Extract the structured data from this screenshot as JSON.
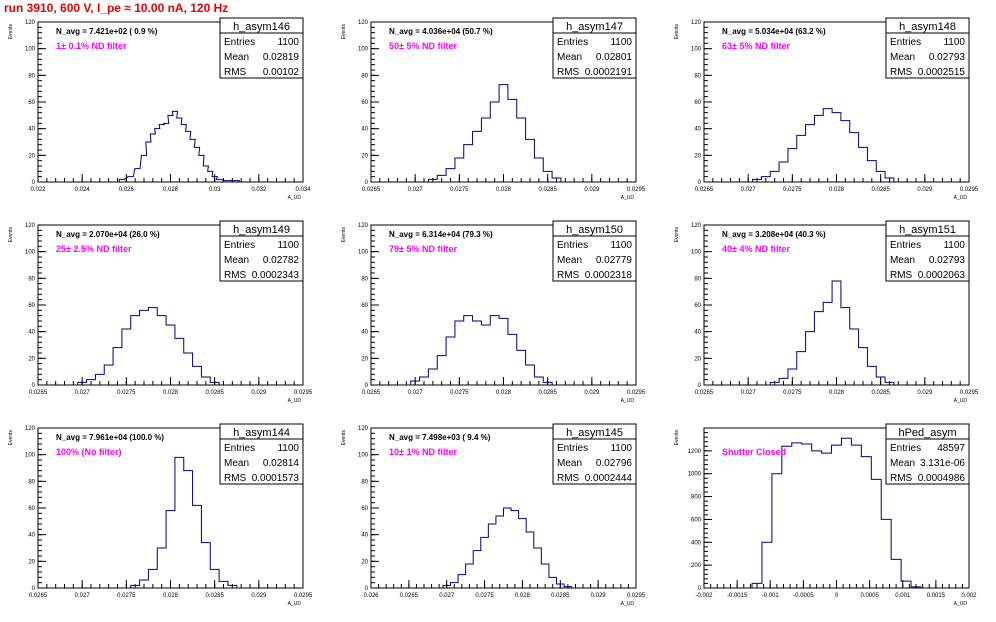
{
  "header": {
    "title": "run 3910,   600 V, I_pe ≈ 10.00 nA, 120 Hz"
  },
  "stat_labels": {
    "entries": "Entries",
    "mean": "Mean",
    "rms": "RMS"
  },
  "colors": {
    "histogram": "#000080",
    "filter_text": "#ff00ff",
    "title_text": "#e60000"
  },
  "chart_data": [
    {
      "type": "histogram",
      "name": "h_asym146",
      "navg": "N_avg = 7.421e+02 ( 0.9 %)",
      "filter": "1± 0.1% ND filter",
      "entries": "1100",
      "mean": "0.02819",
      "rms": "0.00102",
      "xlabel": "A_UD",
      "ylabel": "Events",
      "xlim": [
        0.022,
        0.034
      ],
      "ylim": [
        0,
        120
      ],
      "xticks": [
        "0.022",
        "0.024",
        "0.026",
        "0.028",
        "0.03",
        "0.032",
        "0.034"
      ],
      "yticks": [
        "0",
        "20",
        "40",
        "60",
        "80",
        "100",
        "120"
      ],
      "bin_centers": [
        0.0258,
        0.0262,
        0.0265,
        0.0268,
        0.027,
        0.0272,
        0.0274,
        0.0276,
        0.0278,
        0.028,
        0.0282,
        0.0284,
        0.0286,
        0.0288,
        0.029,
        0.0292,
        0.0294,
        0.0296,
        0.0298,
        0.03,
        0.0302,
        0.0305,
        0.031
      ],
      "counts": [
        2,
        4,
        10,
        20,
        30,
        36,
        40,
        43,
        44,
        50,
        53,
        48,
        43,
        38,
        32,
        26,
        20,
        12,
        8,
        4,
        2,
        1,
        1
      ]
    },
    {
      "type": "histogram",
      "name": "h_asym147",
      "navg": "N_avg = 4.036e+04 (50.7 %)",
      "filter": "50± 5% ND filter",
      "entries": "1100",
      "mean": "0.02801",
      "rms": "0.0002191",
      "xlabel": "A_UD",
      "ylabel": "Events",
      "xlim": [
        0.0265,
        0.0295
      ],
      "ylim": [
        0,
        120
      ],
      "xticks": [
        "0.0265",
        "0.027",
        "0.0275",
        "0.028",
        "0.0285",
        "0.029",
        "0.0295"
      ],
      "yticks": [
        "0",
        "20",
        "40",
        "60",
        "80",
        "100",
        "120"
      ],
      "bin_centers": [
        0.0272,
        0.0273,
        0.0274,
        0.0275,
        0.0276,
        0.0277,
        0.0278,
        0.0279,
        0.028,
        0.0281,
        0.0282,
        0.0283,
        0.0284,
        0.0285,
        0.0286
      ],
      "counts": [
        2,
        5,
        10,
        18,
        28,
        38,
        48,
        60,
        73,
        62,
        48,
        32,
        18,
        8,
        3
      ]
    },
    {
      "type": "histogram",
      "name": "h_asym148",
      "navg": "N_avg = 5.034e+04 (63.2 %)",
      "filter": "63± 5% ND filter",
      "entries": "1100",
      "mean": "0.02793",
      "rms": "0.0002515",
      "xlabel": "A_UD",
      "ylabel": "Events",
      "xlim": [
        0.0265,
        0.0295
      ],
      "ylim": [
        0,
        120
      ],
      "xticks": [
        "0.0265",
        "0.027",
        "0.0275",
        "0.028",
        "0.0285",
        "0.029",
        "0.0295"
      ],
      "yticks": [
        "0",
        "20",
        "40",
        "60",
        "80",
        "100",
        "120"
      ],
      "bin_centers": [
        0.0271,
        0.0272,
        0.0273,
        0.0274,
        0.0275,
        0.0276,
        0.0277,
        0.0278,
        0.0279,
        0.028,
        0.0281,
        0.0282,
        0.0283,
        0.0284,
        0.0285,
        0.0286
      ],
      "counts": [
        2,
        4,
        8,
        15,
        25,
        35,
        43,
        50,
        55,
        52,
        46,
        37,
        26,
        16,
        8,
        3
      ]
    },
    {
      "type": "histogram",
      "name": "h_asym149",
      "navg": "N_avg = 2.070e+04 (26.0 %)",
      "filter": "25± 2.5% ND filter",
      "entries": "1100",
      "mean": "0.02782",
      "rms": "0.0002343",
      "xlabel": "A_UD",
      "ylabel": "Events",
      "xlim": [
        0.0265,
        0.0295
      ],
      "ylim": [
        0,
        120
      ],
      "xticks": [
        "0.0265",
        "0.027",
        "0.0275",
        "0.028",
        "0.0285",
        "0.029",
        "0.0295"
      ],
      "yticks": [
        "0",
        "20",
        "40",
        "60",
        "80",
        "100",
        "120"
      ],
      "bin_centers": [
        0.027,
        0.0271,
        0.0272,
        0.0273,
        0.0274,
        0.0275,
        0.0276,
        0.0277,
        0.0278,
        0.0279,
        0.028,
        0.0281,
        0.0282,
        0.0283,
        0.0284,
        0.0285
      ],
      "counts": [
        2,
        4,
        8,
        15,
        28,
        42,
        52,
        56,
        58,
        52,
        45,
        35,
        24,
        14,
        6,
        2
      ]
    },
    {
      "type": "histogram",
      "name": "h_asym150",
      "navg": "N_avg = 6.314e+04 (79.3 %)",
      "filter": "79± 5% ND filter",
      "entries": "1100",
      "mean": "0.02779",
      "rms": "0.0002318",
      "xlabel": "A_UD",
      "ylabel": "Events",
      "xlim": [
        0.0265,
        0.0295
      ],
      "ylim": [
        0,
        120
      ],
      "xticks": [
        "0.0265",
        "0.027",
        "0.0275",
        "0.028",
        "0.0285",
        "0.029",
        "0.0295"
      ],
      "yticks": [
        "0",
        "20",
        "40",
        "60",
        "80",
        "100",
        "120"
      ],
      "bin_centers": [
        0.027,
        0.0271,
        0.0272,
        0.0273,
        0.0274,
        0.0275,
        0.0276,
        0.0277,
        0.0278,
        0.0279,
        0.028,
        0.0281,
        0.0282,
        0.0283,
        0.0284,
        0.0285
      ],
      "counts": [
        3,
        6,
        12,
        22,
        36,
        48,
        52,
        48,
        45,
        52,
        50,
        38,
        26,
        15,
        6,
        2
      ]
    },
    {
      "type": "histogram",
      "name": "h_asym151",
      "navg": "N_avg = 3.208e+04 (40.3 %)",
      "filter": "40± 4% ND filter",
      "entries": "1100",
      "mean": "0.02793",
      "rms": "0.0002063",
      "xlabel": "A_UD",
      "ylabel": "Events",
      "xlim": [
        0.0265,
        0.0295
      ],
      "ylim": [
        0,
        120
      ],
      "xticks": [
        "0.0265",
        "0.027",
        "0.0275",
        "0.028",
        "0.0285",
        "0.029",
        "0.0295"
      ],
      "yticks": [
        "0",
        "20",
        "40",
        "60",
        "80",
        "100",
        "120"
      ],
      "bin_centers": [
        0.0273,
        0.0274,
        0.0275,
        0.0276,
        0.0277,
        0.0278,
        0.0279,
        0.028,
        0.0281,
        0.0282,
        0.0283,
        0.0284,
        0.0285,
        0.0286
      ],
      "counts": [
        2,
        5,
        12,
        25,
        40,
        55,
        62,
        78,
        58,
        42,
        28,
        14,
        6,
        2
      ]
    },
    {
      "type": "histogram",
      "name": "h_asym144",
      "navg": "N_avg = 7.961e+04 (100.0 %)",
      "filter": "100% (No filter)",
      "entries": "1100",
      "mean": "0.02814",
      "rms": "0.0001573",
      "xlabel": "A_UD",
      "ylabel": "Events",
      "xlim": [
        0.0265,
        0.0295
      ],
      "ylim": [
        0,
        120
      ],
      "xticks": [
        "0.0265",
        "0.027",
        "0.0275",
        "0.028",
        "0.0285",
        "0.029",
        "0.0295"
      ],
      "yticks": [
        "0",
        "20",
        "40",
        "60",
        "80",
        "100",
        "120"
      ],
      "bin_centers": [
        0.0276,
        0.0277,
        0.0278,
        0.0279,
        0.028,
        0.0281,
        0.0282,
        0.0283,
        0.0284,
        0.0285,
        0.0286,
        0.0287
      ],
      "counts": [
        2,
        6,
        14,
        30,
        58,
        98,
        88,
        62,
        34,
        14,
        5,
        2
      ]
    },
    {
      "type": "histogram",
      "name": "h_asym145",
      "navg": "N_avg = 7.498e+03 ( 9.4 %)",
      "filter": "10± 1% ND filter",
      "entries": "1100",
      "mean": "0.02796",
      "rms": "0.0002444",
      "xlabel": "A_UD",
      "ylabel": "Events",
      "xlim": [
        0.026,
        0.0295
      ],
      "ylim": [
        0,
        120
      ],
      "xticks": [
        "0.026",
        "0.0265",
        "0.027",
        "0.0275",
        "0.028",
        "0.0285",
        "0.029",
        "0.0295"
      ],
      "yticks": [
        "0",
        "20",
        "40",
        "60",
        "80",
        "100",
        "120"
      ],
      "bin_centers": [
        0.027,
        0.0271,
        0.0272,
        0.0273,
        0.0274,
        0.0275,
        0.0276,
        0.0277,
        0.0278,
        0.0279,
        0.028,
        0.0281,
        0.0282,
        0.0283,
        0.0284,
        0.0285,
        0.0286
      ],
      "counts": [
        2,
        4,
        10,
        18,
        28,
        38,
        48,
        54,
        60,
        58,
        52,
        42,
        30,
        18,
        8,
        3,
        1
      ]
    },
    {
      "type": "histogram",
      "name": "hPed_asym",
      "navg": "",
      "filter": "Shutter Closed",
      "entries": "48597",
      "mean": "3.131e-06",
      "rms": "0.0004986",
      "xlabel": "A_UD",
      "ylabel": "Events",
      "xlim": [
        -0.002,
        0.002
      ],
      "ylim": [
        0,
        1400
      ],
      "xticks": [
        "-0.002",
        "-0.0015",
        "-0.001",
        "-0.0005",
        "0",
        "0.0005",
        "0.001",
        "0.0015",
        "0.002"
      ],
      "yticks": [
        "0",
        "200",
        "400",
        "600",
        "800",
        "1000",
        "1200"
      ],
      "bin_centers": [
        -0.0012,
        -0.00105,
        -0.0009,
        -0.00075,
        -0.0006,
        -0.00045,
        -0.0003,
        -0.00015,
        0,
        0.00015,
        0.0003,
        0.00045,
        0.0006,
        0.00075,
        0.0009,
        0.00105,
        0.0012
      ],
      "counts": [
        40,
        400,
        1000,
        1240,
        1270,
        1260,
        1200,
        1180,
        1250,
        1310,
        1250,
        1150,
        950,
        600,
        250,
        60,
        10
      ]
    }
  ]
}
